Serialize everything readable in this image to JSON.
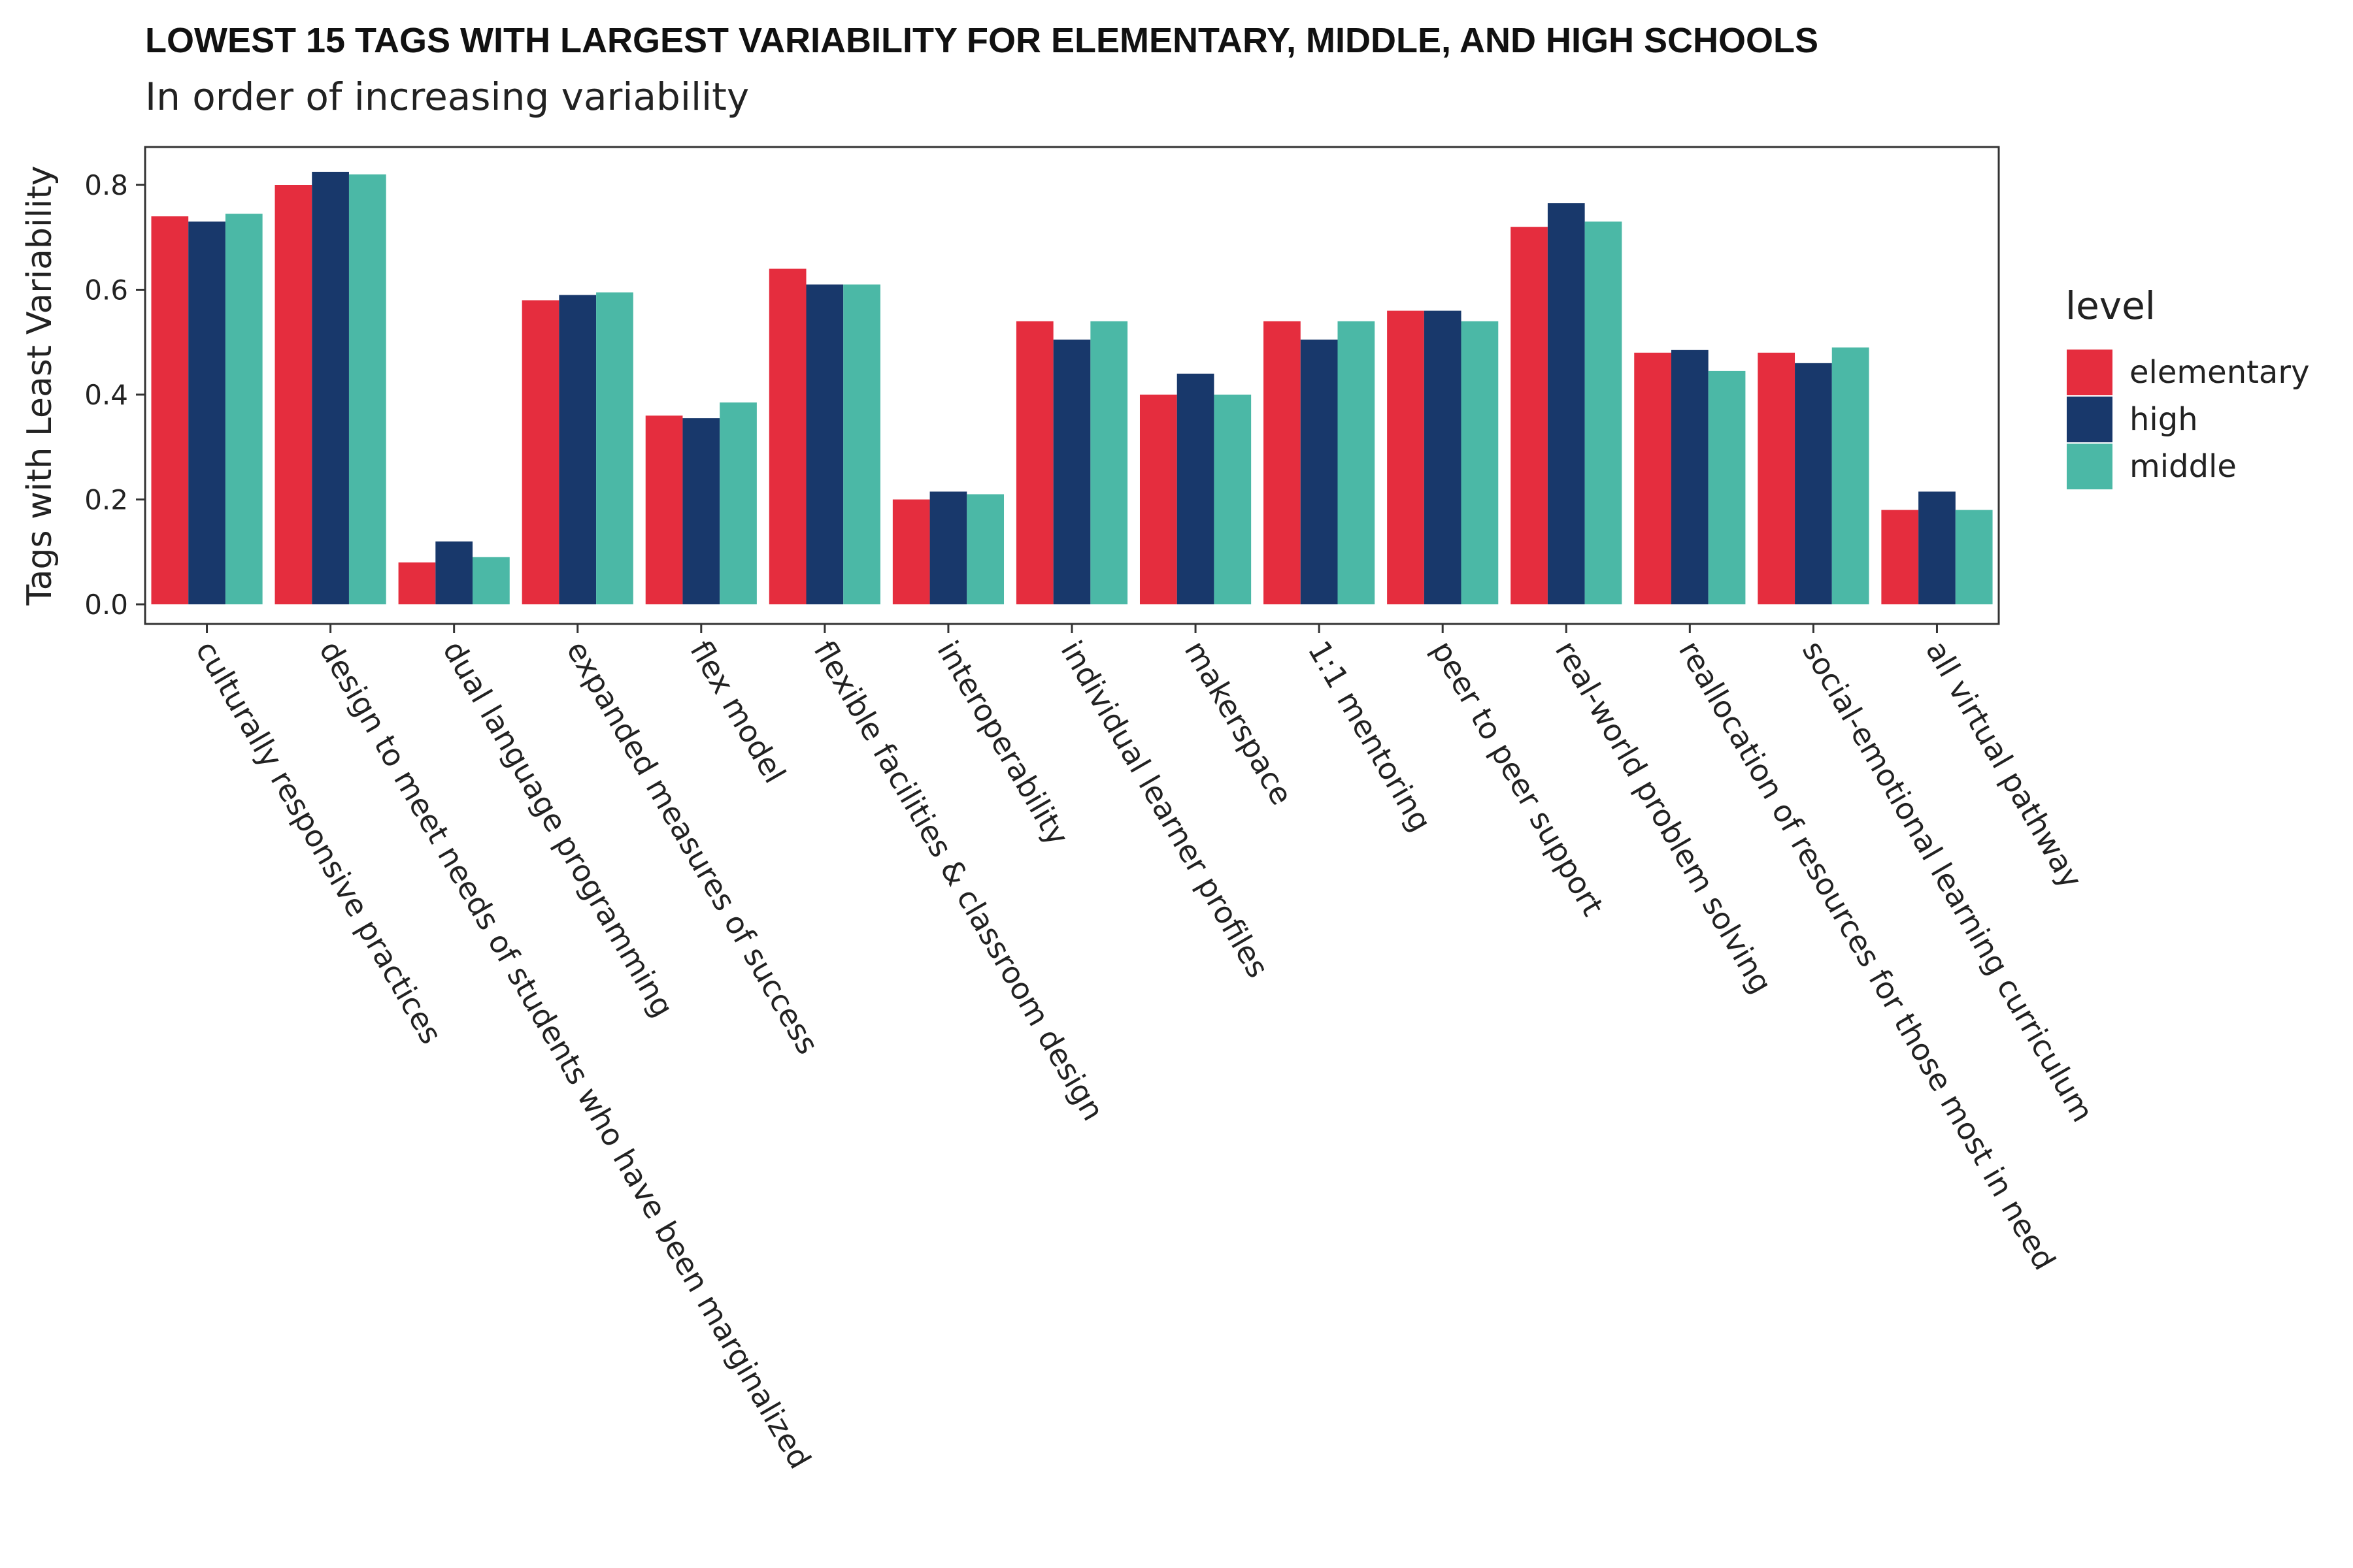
{
  "chart_data": {
    "type": "bar",
    "title": "LOWEST 15 TAGS WITH LARGEST VARIABILITY FOR ELEMENTARY, MIDDLE, AND HIGH SCHOOLS",
    "subtitle": "In order of increasing variability",
    "xlabel": "",
    "ylabel": "Tags with Least Variability",
    "ylim": [
      0,
      0.875
    ],
    "yticks": [
      "0.0",
      "0.2",
      "0.4",
      "0.6",
      "0.8"
    ],
    "ytick_values": [
      0,
      0.2,
      0.4,
      0.6,
      0.8
    ],
    "grid": false,
    "legend_title": "level",
    "legend_position": "right",
    "categories": [
      "culturally responsive practices",
      "design to meet needs of students who have been marginalized",
      "dual language programming",
      "expanded measures of success",
      "flex model",
      "flexible facilities & classroom design",
      "interoperability",
      "individual learner profiles",
      "makerspace",
      "1:1 mentoring",
      "peer to peer support",
      "real-world problem solving",
      "reallocation of resources for those most in need",
      "social-emotional learning curriculum",
      "all virtual pathway"
    ],
    "series": [
      {
        "name": "elementary",
        "color": "#e52d3e",
        "values": [
          0.74,
          0.8,
          0.08,
          0.58,
          0.36,
          0.64,
          0.2,
          0.54,
          0.4,
          0.54,
          0.56,
          0.72,
          0.48,
          0.48,
          0.18
        ]
      },
      {
        "name": "high",
        "color": "#18386b",
        "values": [
          0.73,
          0.825,
          0.12,
          0.59,
          0.355,
          0.61,
          0.215,
          0.505,
          0.44,
          0.505,
          0.56,
          0.765,
          0.485,
          0.46,
          0.215
        ]
      },
      {
        "name": "middle",
        "color": "#4bb8a6",
        "values": [
          0.745,
          0.82,
          0.09,
          0.595,
          0.385,
          0.61,
          0.21,
          0.54,
          0.4,
          0.54,
          0.54,
          0.73,
          0.445,
          0.49,
          0.18
        ]
      }
    ]
  }
}
